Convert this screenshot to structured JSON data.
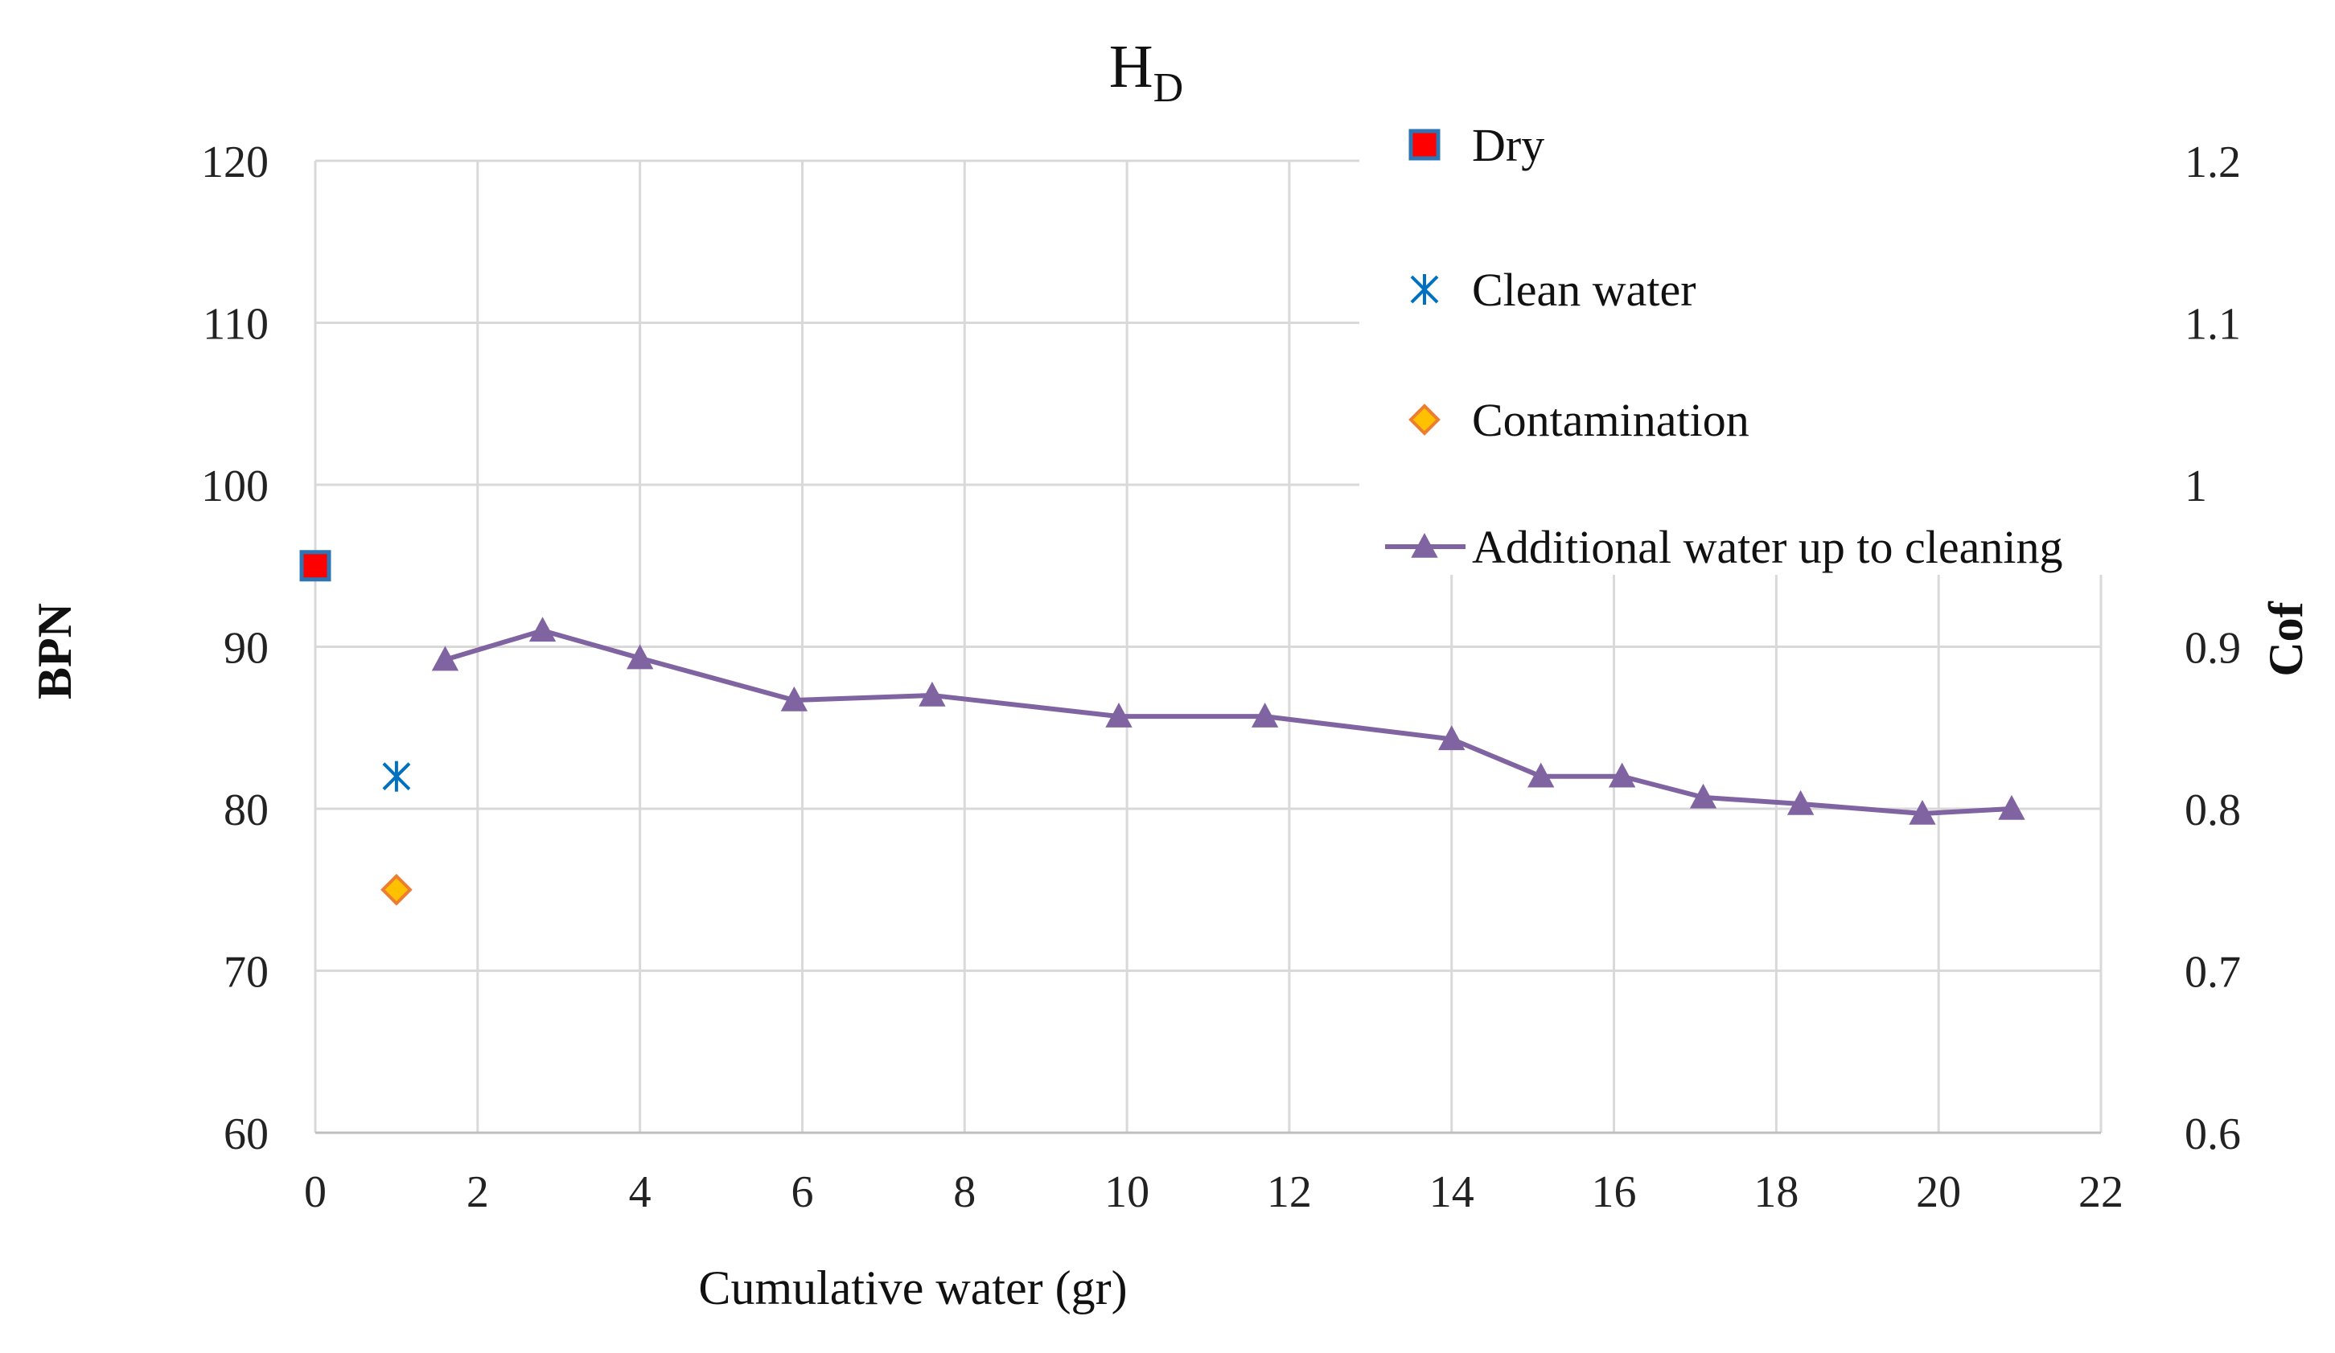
{
  "chart_data": {
    "type": "scatter",
    "title": "H",
    "title_subscript": "D",
    "xlabel": "Cumulative water (gr)",
    "ylabel": "BPN",
    "y2label": "Cof",
    "xlim": [
      0,
      22
    ],
    "ylim": [
      60,
      120
    ],
    "y2lim": [
      0.6,
      1.2
    ],
    "x_ticks": [
      0,
      2,
      4,
      6,
      8,
      10,
      12,
      14,
      16,
      18,
      20,
      22
    ],
    "y_ticks": [
      60,
      70,
      80,
      90,
      100,
      110,
      120
    ],
    "y2_ticks": [
      "0.6",
      "0.7",
      "0.8",
      "0.9",
      "1",
      "1.1",
      "1.2"
    ],
    "grid": true,
    "legend_position": "top-right",
    "series": [
      {
        "name": "Dry",
        "marker": "square",
        "color": "#ff0000",
        "edge": "#2e75b6",
        "x": [
          0
        ],
        "y": [
          95
        ]
      },
      {
        "name": "Clean water",
        "marker": "asterisk",
        "color": "#0070c0",
        "x": [
          1
        ],
        "y": [
          82
        ]
      },
      {
        "name": "Contamination",
        "marker": "diamond",
        "color": "#ffc000",
        "edge": "#ed7d31",
        "x": [
          1
        ],
        "y": [
          75
        ]
      },
      {
        "name": "Additional water up to cleaning",
        "marker": "triangle",
        "line": true,
        "color": "#8064a2",
        "x": [
          1.6,
          2.8,
          4.0,
          5.9,
          7.6,
          9.9,
          11.7,
          14.0,
          15.1,
          16.1,
          17.1,
          18.3,
          19.8,
          20.9
        ],
        "y": [
          89.2,
          91.0,
          89.3,
          86.7,
          87.0,
          85.7,
          85.7,
          84.3,
          82.0,
          82.0,
          80.7,
          80.3,
          79.7,
          80.0
        ]
      }
    ]
  }
}
